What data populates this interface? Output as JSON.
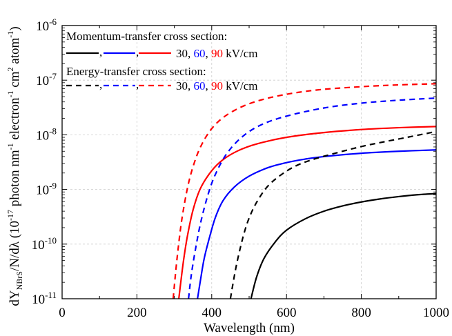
{
  "chart_data": {
    "type": "line",
    "xlabel": "Wavelength (nm)",
    "ylabel": {
      "parts": [
        "dY",
        "NBrS",
        "/N/dλ (10",
        "-17",
        " photon nm",
        "-1",
        " electron",
        "-1",
        " cm",
        "2",
        " atom",
        "-1",
        ")"
      ]
    },
    "xlim": [
      0,
      1000
    ],
    "ylim": [
      1e-11,
      1e-06
    ],
    "yscale": "log",
    "x_ticks": [
      0,
      200,
      400,
      600,
      800,
      1000
    ],
    "x_tick_labels": [
      "0",
      "200",
      "400",
      "600",
      "800",
      "1000"
    ],
    "y_ticks": [
      {
        "value": 1e-11,
        "base": "10",
        "exp": "-11"
      },
      {
        "value": 1e-10,
        "base": "10",
        "exp": "-10"
      },
      {
        "value": 1e-09,
        "base": "10",
        "exp": "-9"
      },
      {
        "value": 1e-08,
        "base": "10",
        "exp": "-8"
      },
      {
        "value": 1e-07,
        "base": "10",
        "exp": "-7"
      },
      {
        "value": 1e-06,
        "base": "10",
        "exp": "-6"
      }
    ],
    "grid": true,
    "legend": {
      "position": "top-left",
      "momentum_title": "Momentum-transfer cross section:",
      "energy_title": "Energy-transfer cross section:",
      "separator": ",",
      "fields": [
        "30",
        "60",
        "90"
      ],
      "unit": " kV/cm"
    },
    "series": [
      {
        "group": "momentum",
        "field": "30",
        "color": "#000000",
        "dash": "solid",
        "x": [
          505,
          520,
          540,
          570,
          600,
          650,
          700,
          750,
          800,
          850,
          900,
          950,
          1000
        ],
        "y": [
          1e-11,
          2.5e-11,
          5.5e-11,
          1.1e-10,
          1.8e-10,
          2.9e-10,
          4e-10,
          5e-10,
          5.9e-10,
          6.7e-10,
          7.4e-10,
          8e-10,
          8.4e-10
        ]
      },
      {
        "group": "momentum",
        "field": "60",
        "color": "#0000ff",
        "dash": "solid",
        "x": [
          362,
          370,
          380,
          395,
          410,
          430,
          460,
          500,
          550,
          600,
          650,
          700,
          800,
          900,
          1000
        ],
        "y": [
          1e-11,
          2.2e-11,
          5.5e-11,
          1.4e-10,
          3.1e-10,
          6.2e-10,
          1.1e-09,
          1.75e-09,
          2.5e-09,
          3.1e-09,
          3.6e-09,
          4e-09,
          4.6e-09,
          5e-09,
          5.3e-09
        ]
      },
      {
        "group": "momentum",
        "field": "90",
        "color": "#ff0000",
        "dash": "solid",
        "x": [
          312,
          318,
          325,
          335,
          350,
          370,
          400,
          430,
          470,
          520,
          600,
          700,
          800,
          900,
          1000
        ],
        "y": [
          1e-11,
          2.2e-11,
          5.2e-11,
          1.4e-10,
          4.2e-10,
          1.05e-09,
          2.2e-09,
          3.5e-09,
          5.1e-09,
          6.8e-09,
          9e-09,
          1.1e-08,
          1.25e-08,
          1.35e-08,
          1.42e-08
        ]
      },
      {
        "group": "energy",
        "field": "30",
        "color": "#000000",
        "dash": "dashed",
        "x": [
          450,
          460,
          470,
          485,
          500,
          520,
          550,
          590,
          630,
          680,
          750,
          800,
          850,
          900,
          950,
          1000
        ],
        "y": [
          1e-11,
          2.5e-11,
          5.5e-11,
          1.45e-10,
          3e-10,
          5.8e-10,
          1.15e-09,
          1.95e-09,
          2.8e-09,
          3.7e-09,
          5e-09,
          6.1e-09,
          7.2e-09,
          8.4e-09,
          9.8e-09,
          1.15e-08
        ]
      },
      {
        "group": "energy",
        "field": "60",
        "color": "#0000ff",
        "dash": "dashed",
        "x": [
          338,
          345,
          355,
          370,
          390,
          410,
          440,
          480,
          530,
          600,
          700,
          800,
          900,
          1000
        ],
        "y": [
          1e-11,
          2.6e-11,
          7e-11,
          2.4e-10,
          8e-10,
          1.9e-09,
          4.5e-09,
          9e-09,
          1.5e-08,
          2.2e-08,
          3.1e-08,
          3.8e-08,
          4.3e-08,
          4.7e-08
        ]
      },
      {
        "group": "energy",
        "field": "90",
        "color": "#ff0000",
        "dash": "dashed",
        "x": [
          297,
          303,
          310,
          320,
          335,
          350,
          370,
          400,
          440,
          500,
          580,
          680,
          800,
          900,
          1000
        ],
        "y": [
          1e-11,
          2.8e-11,
          8e-11,
          2.8e-10,
          1.05e-09,
          2.6e-09,
          6e-09,
          1.3e-08,
          2.3e-08,
          3.7e-08,
          5.2e-08,
          6.6e-08,
          7.6e-08,
          8.2e-08,
          8.6e-08
        ]
      }
    ],
    "colors": {
      "black": "#000000",
      "blue": "#0000ff",
      "red": "#ff0000",
      "grid": "#cccccc"
    }
  }
}
